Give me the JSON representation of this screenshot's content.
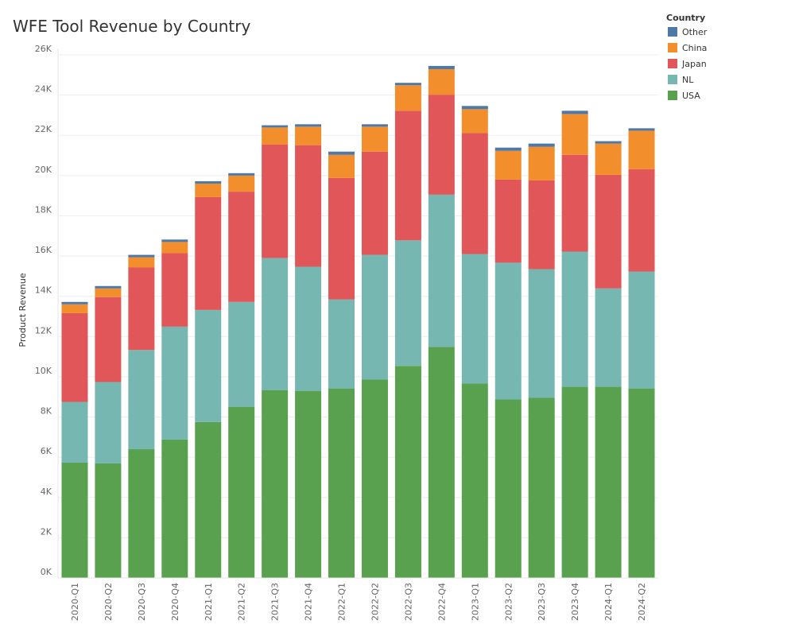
{
  "chart_data": {
    "type": "bar",
    "stacked": true,
    "title": "WFE Tool Revenue by Country",
    "xlabel": "",
    "ylabel": "Product Revenue",
    "ylim": [
      0,
      26000
    ],
    "yticks": [
      0,
      2000,
      4000,
      6000,
      8000,
      10000,
      12000,
      14000,
      16000,
      18000,
      20000,
      22000,
      24000,
      26000
    ],
    "ytick_labels": [
      "0K",
      "2K",
      "4K",
      "6K",
      "8K",
      "10K",
      "12K",
      "14K",
      "16K",
      "18K",
      "20K",
      "22K",
      "24K",
      "26K"
    ],
    "grid": true,
    "legend": {
      "title": "Country",
      "placement": "top-right"
    },
    "categories": [
      "2020-Q1",
      "2020-Q2",
      "2020-Q3",
      "2020-Q4",
      "2021-Q1",
      "2021-Q2",
      "2021-Q3",
      "2021-Q4",
      "2022-Q1",
      "2022-Q2",
      "2022-Q3",
      "2022-Q4",
      "2023-Q1",
      "2023-Q2",
      "2023-Q3",
      "2023-Q4",
      "2024-Q1",
      "2024-Q2"
    ],
    "series": [
      {
        "name": "USA",
        "color": "#59a14f",
        "values": [
          5730,
          5690,
          6400,
          6880,
          7750,
          8510,
          9340,
          9300,
          9420,
          9860,
          10540,
          11490,
          9660,
          8870,
          8950,
          9500,
          9500,
          9420
        ]
      },
      {
        "name": "NL",
        "color": "#76b7b2",
        "values": [
          3020,
          4050,
          4930,
          5610,
          5570,
          5210,
          6560,
          6170,
          4420,
          6200,
          6240,
          7560,
          6440,
          6800,
          6400,
          6720,
          4890,
          5810
        ]
      },
      {
        "name": "Japan",
        "color": "#e15759",
        "values": [
          4410,
          4220,
          4100,
          3650,
          5610,
          5480,
          5650,
          6040,
          6040,
          5130,
          6440,
          4970,
          6010,
          4130,
          4410,
          4810,
          5650,
          5090
        ]
      },
      {
        "name": "China",
        "color": "#f28e2b",
        "values": [
          440,
          430,
          510,
          560,
          670,
          800,
          840,
          920,
          1150,
          1240,
          1270,
          1270,
          1190,
          1430,
          1670,
          2030,
          1550,
          1910
        ]
      },
      {
        "name": "Other",
        "color": "#4e79a7",
        "values": [
          120,
          120,
          120,
          120,
          120,
          120,
          110,
          120,
          160,
          120,
          120,
          160,
          160,
          160,
          160,
          160,
          120,
          120
        ]
      }
    ],
    "legend_order": [
      "Other",
      "China",
      "Japan",
      "NL",
      "USA"
    ]
  }
}
